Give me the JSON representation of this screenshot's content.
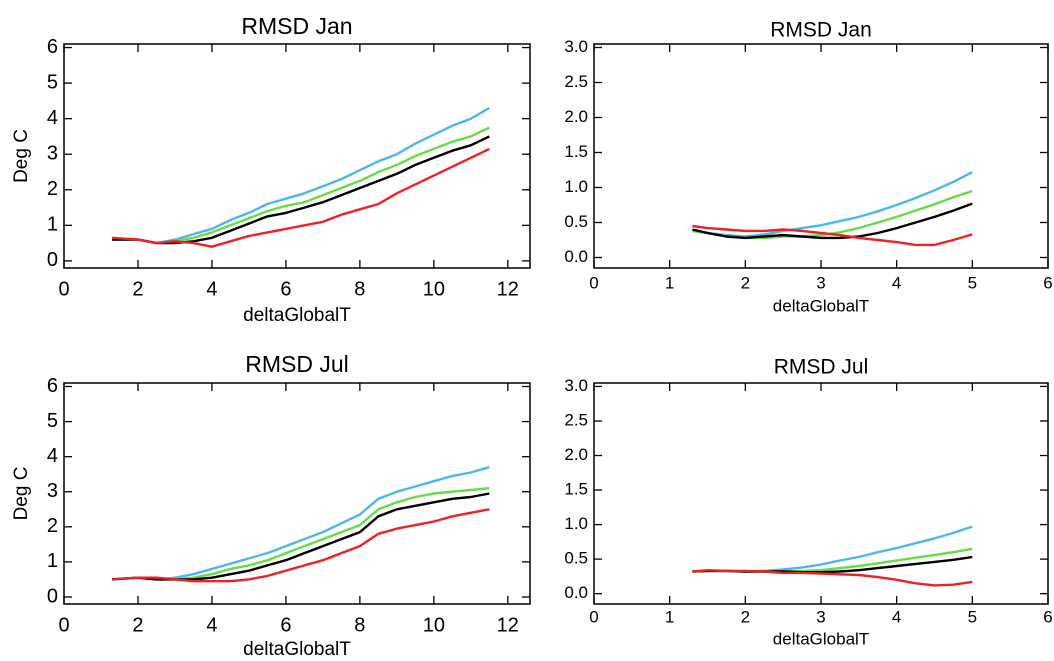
{
  "chart_data": [
    {
      "type": "line",
      "title": "RMSD Jan",
      "x_label": "deltaGlobalT",
      "y_label": "Deg C",
      "x": [
        1.3,
        2,
        2.5,
        3,
        3.5,
        4,
        4.5,
        5,
        5.5,
        6,
        6.5,
        7,
        7.5,
        8,
        8.5,
        9,
        9.5,
        10,
        10.5,
        11,
        11.5
      ],
      "series": [
        {
          "color": "#4ab8e8",
          "values": [
            0.6,
            0.6,
            0.5,
            0.6,
            0.75,
            0.9,
            1.15,
            1.35,
            1.6,
            1.75,
            1.9,
            2.1,
            2.3,
            2.55,
            2.8,
            3.0,
            3.3,
            3.55,
            3.8,
            4.0,
            4.3
          ]
        },
        {
          "color": "#66dd44",
          "values": [
            0.6,
            0.6,
            0.5,
            0.55,
            0.65,
            0.8,
            1.0,
            1.2,
            1.4,
            1.55,
            1.65,
            1.85,
            2.05,
            2.25,
            2.5,
            2.7,
            2.95,
            3.15,
            3.35,
            3.5,
            3.75
          ]
        },
        {
          "color": "#000000",
          "values": [
            0.6,
            0.6,
            0.5,
            0.5,
            0.55,
            0.65,
            0.85,
            1.05,
            1.25,
            1.35,
            1.5,
            1.65,
            1.85,
            2.05,
            2.25,
            2.45,
            2.7,
            2.9,
            3.1,
            3.25,
            3.5
          ]
        },
        {
          "color": "#ee2222",
          "values": [
            0.65,
            0.6,
            0.5,
            0.55,
            0.5,
            0.4,
            0.55,
            0.7,
            0.8,
            0.9,
            1.0,
            1.1,
            1.3,
            1.45,
            1.6,
            1.9,
            2.15,
            2.4,
            2.65,
            2.9,
            3.15
          ]
        }
      ],
      "xlim": [
        0,
        12.6
      ],
      "ylim": [
        -0.2,
        6.1
      ],
      "xticks": [
        0,
        2,
        4,
        6,
        8,
        10,
        12
      ],
      "yticks": [
        0,
        1,
        2,
        3,
        4,
        5,
        6
      ]
    },
    {
      "type": "line",
      "title": "RMSD Jan",
      "x_label": "deltaGlobalT",
      "x": [
        1.3,
        1.5,
        1.75,
        2,
        2.25,
        2.5,
        2.75,
        3,
        3.25,
        3.5,
        3.75,
        4,
        4.25,
        4.5,
        4.75,
        5
      ],
      "series": [
        {
          "color": "#4ab8e8",
          "values": [
            0.38,
            0.35,
            0.32,
            0.3,
            0.33,
            0.38,
            0.42,
            0.46,
            0.52,
            0.58,
            0.66,
            0.75,
            0.85,
            0.96,
            1.08,
            1.22
          ]
        },
        {
          "color": "#66dd44",
          "values": [
            0.38,
            0.35,
            0.3,
            0.28,
            0.28,
            0.3,
            0.3,
            0.32,
            0.36,
            0.42,
            0.5,
            0.58,
            0.67,
            0.76,
            0.86,
            0.95
          ]
        },
        {
          "color": "#000000",
          "values": [
            0.4,
            0.35,
            0.3,
            0.28,
            0.3,
            0.32,
            0.3,
            0.28,
            0.28,
            0.3,
            0.35,
            0.42,
            0.5,
            0.58,
            0.67,
            0.77
          ]
        },
        {
          "color": "#ee2222",
          "values": [
            0.45,
            0.42,
            0.4,
            0.38,
            0.38,
            0.4,
            0.38,
            0.35,
            0.32,
            0.28,
            0.25,
            0.22,
            0.18,
            0.18,
            0.25,
            0.33
          ]
        }
      ],
      "xlim": [
        0,
        6
      ],
      "ylim": [
        -0.15,
        3.05
      ],
      "xticks": [
        0,
        1,
        2,
        3,
        4,
        5,
        6
      ],
      "yticks": [
        {
          "value": 0,
          "label": "0.0"
        },
        {
          "value": 0.5,
          "label": "0.5"
        },
        {
          "value": 1,
          "label": "1.0"
        },
        {
          "value": 1.5,
          "label": "1.5"
        },
        {
          "value": 2,
          "label": "2.0"
        },
        {
          "value": 2.5,
          "label": "2.5"
        },
        {
          "value": 3,
          "label": "3.0"
        }
      ]
    },
    {
      "type": "line",
      "title": "RMSD Jul",
      "x_label": "deltaGlobalT",
      "y_label": "Deg C",
      "x": [
        1.3,
        2,
        2.5,
        3,
        3.5,
        4,
        4.5,
        5,
        5.5,
        6,
        6.5,
        7,
        7.5,
        8,
        8.5,
        9,
        9.5,
        10,
        10.5,
        11,
        11.5
      ],
      "series": [
        {
          "color": "#4ab8e8",
          "values": [
            0.5,
            0.55,
            0.5,
            0.55,
            0.65,
            0.8,
            0.95,
            1.1,
            1.25,
            1.45,
            1.65,
            1.85,
            2.1,
            2.35,
            2.8,
            3.0,
            3.15,
            3.3,
            3.45,
            3.55,
            3.7
          ]
        },
        {
          "color": "#66dd44",
          "values": [
            0.5,
            0.55,
            0.5,
            0.5,
            0.55,
            0.65,
            0.8,
            0.9,
            1.05,
            1.25,
            1.45,
            1.65,
            1.85,
            2.05,
            2.5,
            2.7,
            2.85,
            2.95,
            3.0,
            3.05,
            3.1
          ]
        },
        {
          "color": "#000000",
          "values": [
            0.5,
            0.55,
            0.5,
            0.5,
            0.5,
            0.55,
            0.65,
            0.75,
            0.9,
            1.05,
            1.25,
            1.45,
            1.65,
            1.85,
            2.3,
            2.5,
            2.6,
            2.7,
            2.8,
            2.85,
            2.95
          ]
        },
        {
          "color": "#ee2222",
          "values": [
            0.5,
            0.55,
            0.55,
            0.5,
            0.45,
            0.45,
            0.45,
            0.5,
            0.6,
            0.75,
            0.9,
            1.05,
            1.25,
            1.45,
            1.8,
            1.95,
            2.05,
            2.15,
            2.3,
            2.4,
            2.5
          ]
        }
      ],
      "xlim": [
        0,
        12.6
      ],
      "ylim": [
        -0.2,
        6.1
      ],
      "xticks": [
        0,
        2,
        4,
        6,
        8,
        10,
        12
      ],
      "yticks": [
        0,
        1,
        2,
        3,
        4,
        5,
        6
      ]
    },
    {
      "type": "line",
      "title": "RMSD Jul",
      "x_label": "deltaGlobalT",
      "x": [
        1.3,
        1.5,
        1.75,
        2,
        2.25,
        2.5,
        2.75,
        3,
        3.25,
        3.5,
        3.75,
        4,
        4.25,
        4.5,
        4.75,
        5
      ],
      "series": [
        {
          "color": "#4ab8e8",
          "values": [
            0.32,
            0.33,
            0.33,
            0.32,
            0.33,
            0.35,
            0.38,
            0.42,
            0.48,
            0.53,
            0.6,
            0.66,
            0.73,
            0.8,
            0.88,
            0.97
          ]
        },
        {
          "color": "#66dd44",
          "values": [
            0.32,
            0.33,
            0.33,
            0.32,
            0.32,
            0.32,
            0.33,
            0.34,
            0.37,
            0.4,
            0.44,
            0.48,
            0.52,
            0.56,
            0.6,
            0.65
          ]
        },
        {
          "color": "#000000",
          "values": [
            0.32,
            0.33,
            0.33,
            0.32,
            0.32,
            0.32,
            0.31,
            0.31,
            0.32,
            0.34,
            0.37,
            0.4,
            0.43,
            0.46,
            0.49,
            0.53
          ]
        },
        {
          "color": "#ee2222",
          "values": [
            0.32,
            0.34,
            0.33,
            0.33,
            0.32,
            0.3,
            0.3,
            0.29,
            0.28,
            0.27,
            0.24,
            0.2,
            0.15,
            0.12,
            0.13,
            0.17
          ]
        }
      ],
      "xlim": [
        0,
        6
      ],
      "ylim": [
        -0.15,
        3.05
      ],
      "xticks": [
        0,
        1,
        2,
        3,
        4,
        5,
        6
      ],
      "yticks": [
        {
          "value": 0,
          "label": "0.0"
        },
        {
          "value": 0.5,
          "label": "0.5"
        },
        {
          "value": 1,
          "label": "1.0"
        },
        {
          "value": 1.5,
          "label": "1.5"
        },
        {
          "value": 2,
          "label": "2.0"
        },
        {
          "value": 2.5,
          "label": "2.5"
        },
        {
          "value": 3,
          "label": "3.0"
        }
      ]
    }
  ]
}
